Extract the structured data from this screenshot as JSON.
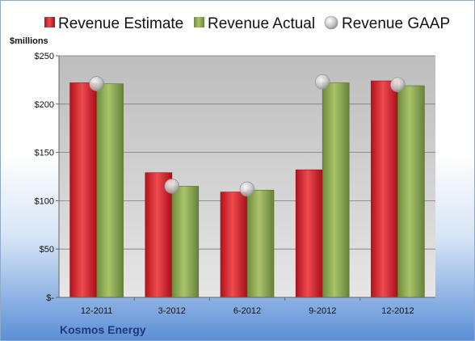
{
  "chart_data": {
    "type": "bar",
    "title": "",
    "unit_label": "$millions",
    "company": "Kosmos Energy",
    "categories": [
      "12-2011",
      "3-2012",
      "6-2012",
      "9-2012",
      "12-2012"
    ],
    "series": [
      {
        "name": "Revenue Estimate",
        "type": "bar",
        "color": "#d0202a",
        "values": [
          222,
          129,
          109,
          132,
          224
        ]
      },
      {
        "name": "Revenue Actual",
        "type": "bar",
        "color": "#8aaa4e",
        "values": [
          221,
          115,
          111,
          222,
          219
        ]
      },
      {
        "name": "Revenue GAAP",
        "type": "marker",
        "color": "#b8b8b8",
        "values": [
          221,
          115,
          112,
          223,
          220
        ]
      }
    ],
    "ylim": [
      0,
      250
    ],
    "yticks": [
      0,
      50,
      100,
      150,
      200,
      250
    ],
    "ytick_labels": [
      "$-",
      "$50",
      "$100",
      "$150",
      "$200",
      "$250"
    ],
    "grid": true,
    "legend": "top"
  }
}
